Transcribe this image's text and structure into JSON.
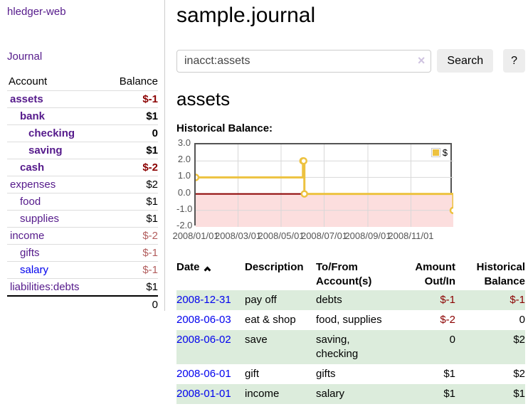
{
  "colors": {
    "link_purple": "#551a8b",
    "link_blue": "#0000ee",
    "negative_strong": "#8b0000",
    "negative_soft": "#b25d5d",
    "row_stripe_green": "#dcecdc",
    "chart_line_gold": "#edc240",
    "chart_negative_fill": "#fcdede",
    "chart_zero_line": "#8b0000",
    "chart_border": "#545454",
    "chart_grid": "#d8d8d8"
  },
  "sidebar": {
    "app_title": "hledger-web",
    "journal_label": "Journal",
    "accounts_table": {
      "headers": {
        "account": "Account",
        "balance": "Balance"
      },
      "rows": [
        {
          "name": "assets",
          "depth": 1,
          "bold": true,
          "link_color": "purple",
          "balance": "$-1",
          "balance_class": "neg-strong"
        },
        {
          "name": "bank",
          "depth": 2,
          "bold": true,
          "link_color": "purple",
          "balance": "$1",
          "balance_class": "pos-strong"
        },
        {
          "name": "checking",
          "depth": 3,
          "bold": true,
          "link_color": "purple",
          "balance": "0",
          "balance_class": "pos-strong"
        },
        {
          "name": "saving",
          "depth": 3,
          "bold": true,
          "link_color": "purple",
          "balance": "$1",
          "balance_class": "pos-strong"
        },
        {
          "name": "cash",
          "depth": 2,
          "bold": true,
          "link_color": "purple",
          "balance": "$-2",
          "balance_class": "neg-strong"
        },
        {
          "name": "expenses",
          "depth": 1,
          "bold": false,
          "link_color": "purple",
          "balance": "$2",
          "balance_class": "pos"
        },
        {
          "name": "food",
          "depth": 2,
          "bold": false,
          "link_color": "purple",
          "balance": "$1",
          "balance_class": "pos"
        },
        {
          "name": "supplies",
          "depth": 2,
          "bold": false,
          "link_color": "purple",
          "balance": "$1",
          "balance_class": "pos"
        },
        {
          "name": "income",
          "depth": 1,
          "bold": false,
          "link_color": "purple",
          "balance": "$-2",
          "balance_class": "neg-soft"
        },
        {
          "name": "gifts",
          "depth": 2,
          "bold": false,
          "link_color": "purple",
          "balance": "$-1",
          "balance_class": "neg-soft"
        },
        {
          "name": "salary",
          "depth": 2,
          "bold": false,
          "link_color": "blue",
          "balance": "$-1",
          "balance_class": "neg-soft"
        },
        {
          "name": "liabilities:debts",
          "depth": 1,
          "bold": false,
          "link_color": "purple",
          "balance": "$1",
          "balance_class": "pos"
        }
      ],
      "total": "0"
    }
  },
  "header": {
    "title": "sample.journal"
  },
  "search": {
    "value": "inacct:assets",
    "clear_icon": "×",
    "search_button": "Search",
    "help_button": "?"
  },
  "main": {
    "account_heading": "assets",
    "chart_label": "Historical Balance:"
  },
  "chart_data": {
    "type": "line",
    "title": "Historical Balance:",
    "step": true,
    "legend_label": "$",
    "legend_position": "top-right",
    "grid": true,
    "ylim": [
      -2,
      3
    ],
    "x_domain": [
      "2008-01-01",
      "2008-12-31"
    ],
    "y_ticks": [
      3.0,
      2.0,
      1.0,
      0.0,
      -1.0,
      -2.0
    ],
    "x_ticks": [
      {
        "label": "2008/01/01",
        "date": "2008-01-01"
      },
      {
        "label": "2008/03/01",
        "date": "2008-03-01"
      },
      {
        "label": "2008/05/01",
        "date": "2008-05-01"
      },
      {
        "label": "2008/07/01",
        "date": "2008-07-01"
      },
      {
        "label": "2008/09/01",
        "date": "2008-09-01"
      },
      {
        "label": "2008/11/01",
        "date": "2008-11-01"
      }
    ],
    "series": [
      {
        "name": "$",
        "color": "#edc240",
        "points": [
          {
            "date": "2008-01-01",
            "y": 1
          },
          {
            "date": "2008-06-01",
            "y": 2
          },
          {
            "date": "2008-06-02",
            "y": 2
          },
          {
            "date": "2008-06-03",
            "y": 0
          },
          {
            "date": "2008-12-31",
            "y": -1
          }
        ]
      }
    ],
    "negative_fill": "#fcdede",
    "zero_line_color": "#8b0000"
  },
  "register_table": {
    "headers": {
      "date": "Date",
      "description": "Description",
      "accounts": "To/From Account(s)",
      "amount": "Amount Out/In",
      "balance": "Historical Balance"
    },
    "rows": [
      {
        "date": "2008-12-31",
        "description": "pay off",
        "accounts": "debts",
        "amount": "$-1",
        "balance": "$-1"
      },
      {
        "date": "2008-06-03",
        "description": "eat & shop",
        "accounts": "food, supplies",
        "amount": "$-2",
        "balance": "0"
      },
      {
        "date": "2008-06-02",
        "description": "save",
        "accounts": "saving, checking",
        "amount": "0",
        "balance": "$2"
      },
      {
        "date": "2008-06-01",
        "description": "gift",
        "accounts": "gifts",
        "amount": "$1",
        "balance": "$2"
      },
      {
        "date": "2008-01-01",
        "description": "income",
        "accounts": "salary",
        "amount": "$1",
        "balance": "$1"
      }
    ]
  }
}
